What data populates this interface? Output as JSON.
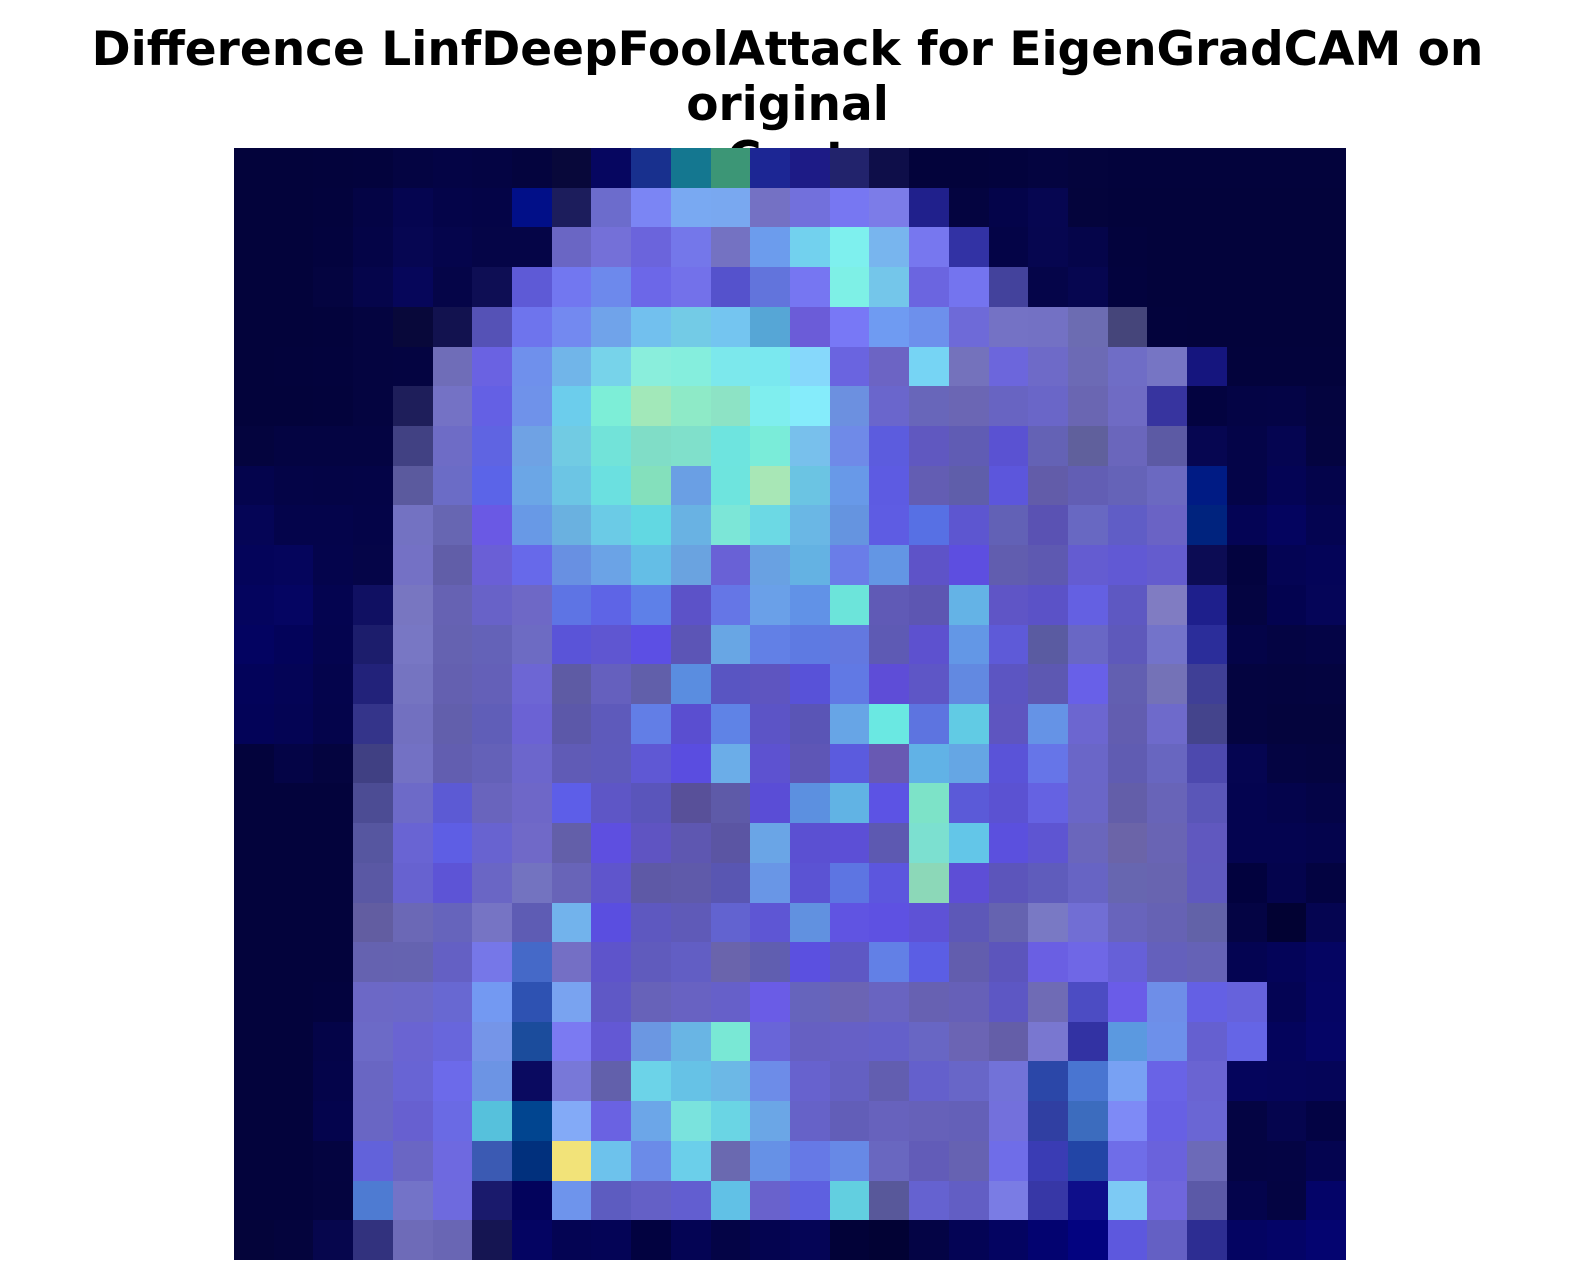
{
  "title": {
    "line1": "Difference LinfDeepFoolAttack for EigenGradCAM on original",
    "line2": "Coat"
  },
  "heatmap": {
    "rows": 28,
    "cols": 28,
    "colors": [
      [
        "#03033b",
        "#03033b",
        "#03033c",
        "#03033d",
        "#040442",
        "#040445",
        "#040443",
        "#04043e",
        "#08083a",
        "#060660",
        "#18308e",
        "#147790",
        "#3c9676",
        "#1c2694",
        "#1d1b86",
        "#22236c",
        "#0e0e49",
        "#03033b",
        "#03033b",
        "#03033d",
        "#040440",
        "#04043d",
        "#03033c",
        "#03033c",
        "#03033c",
        "#03033c",
        "#03033c",
        "#03033c"
      ],
      [
        "#03033b",
        "#03033b",
        "#03033d",
        "#040445",
        "#050550",
        "#040449",
        "#040447",
        "#010f88",
        "#1c1d5c",
        "#6c6ccc",
        "#7b85f4",
        "#79a9f2",
        "#79a8f0",
        "#7471c4",
        "#7270dc",
        "#7777f2",
        "#7c7ce8",
        "#20208c",
        "#040440",
        "#04044a",
        "#060651",
        "#04043c",
        "#03033b",
        "#03033b",
        "#03033b",
        "#03033b",
        "#03033b",
        "#03033b"
      ],
      [
        "#03033b",
        "#03033b",
        "#03033e",
        "#040447",
        "#060652",
        "#05054c",
        "#050547",
        "#050547",
        "#6a66c4",
        "#7470d8",
        "#6b64dc",
        "#7477ea",
        "#7472c2",
        "#6c9ced",
        "#72d1ee",
        "#7ef0ee",
        "#78b5ee",
        "#7777ef",
        "#3232a4",
        "#040447",
        "#060650",
        "#05054a",
        "#03033d",
        "#03033b",
        "#03033b",
        "#03033b",
        "#03033b",
        "#03033b"
      ],
      [
        "#03033b",
        "#03033b",
        "#040440",
        "#05054b",
        "#06065a",
        "#050548",
        "#0e0e54",
        "#5e5ad6",
        "#7277f0",
        "#6d89ec",
        "#6c67e8",
        "#7371ea",
        "#5552cc",
        "#6274dc",
        "#7676f2",
        "#7ef0e6",
        "#74c6ea",
        "#6b65e0",
        "#7474ef",
        "#43429c",
        "#050549",
        "#060650",
        "#03033e",
        "#03033b",
        "#03033b",
        "#03033b",
        "#03033b",
        "#03033b"
      ],
      [
        "#03033b",
        "#03033b",
        "#03033c",
        "#040440",
        "#08083a",
        "#12124f",
        "#5552b6",
        "#6e74ed",
        "#7389f0",
        "#70a3ea",
        "#72c0ee",
        "#73cbe6",
        "#74c5f0",
        "#56a6d6",
        "#6b5cd8",
        "#7878f6",
        "#6f9bf2",
        "#6d90ec",
        "#6e6ad8",
        "#7472c5",
        "#7371c4",
        "#6c6cb2",
        "#45457a",
        "#03033c",
        "#03033b",
        "#03033b",
        "#03033b",
        "#03033b"
      ],
      [
        "#03033b",
        "#03033c",
        "#03033d",
        "#040440",
        "#040441",
        "#6f6db8",
        "#6a62e2",
        "#6f90ec",
        "#71b5e9",
        "#77d3ea",
        "#8aeedc",
        "#85eedd",
        "#7ce8ec",
        "#7ae8ef",
        "#86d8fb",
        "#6a64e0",
        "#6c64c4",
        "#76d4f4",
        "#7472bc",
        "#6c66dc",
        "#6e6ac8",
        "#6c6ab5",
        "#6f6dc6",
        "#7675c4",
        "#15157e",
        "#03033c",
        "#03033c",
        "#03033c"
      ],
      [
        "#03033b",
        "#03033b",
        "#03033c",
        "#040440",
        "#1e1e5a",
        "#7472c5",
        "#6460e4",
        "#6f92ea",
        "#6ccdec",
        "#7deed7",
        "#a2e8b9",
        "#8eeac7",
        "#8de3c5",
        "#7feeee",
        "#85ecfb",
        "#6c90e0",
        "#6a66cc",
        "#6866ba",
        "#6b66b4",
        "#6864c2",
        "#6a66c8",
        "#6a66b2",
        "#6f6bc4",
        "#37349f",
        "#030340",
        "#040445",
        "#040446",
        "#04043f"
      ],
      [
        "#04043e",
        "#040442",
        "#040442",
        "#040442",
        "#414183",
        "#6e6cc6",
        "#5f64e2",
        "#6fa2e4",
        "#71cbe3",
        "#72e3d9",
        "#80ddc7",
        "#80e0cb",
        "#6ee4df",
        "#7aecd9",
        "#78c0ec",
        "#6f8ae8",
        "#5c5cde",
        "#6058c0",
        "#605cb4",
        "#5a52d2",
        "#6462b5",
        "#60609c",
        "#6a66bc",
        "#5c5aa4",
        "#060651",
        "#040448",
        "#050551",
        "#040440"
      ],
      [
        "#04044d",
        "#040447",
        "#040446",
        "#040447",
        "#5b5a9e",
        "#6b6cc6",
        "#5b64e8",
        "#6ba6e6",
        "#6cc5e4",
        "#6be0e0",
        "#84e0bc",
        "#6a9fe4",
        "#6ee4de",
        "#a8e7b6",
        "#6bc4e3",
        "#6899e8",
        "#5d5be2",
        "#635db3",
        "#5f5eaa",
        "#5c56dc",
        "#625ca9",
        "#625eb4",
        "#6563b8",
        "#6b69c1",
        "#001b84",
        "#040448",
        "#040455",
        "#04044b"
      ],
      [
        "#050556",
        "#04044b",
        "#04044b",
        "#040448",
        "#7372c2",
        "#6766b2",
        "#6a59e4",
        "#6899e6",
        "#6ab1e0",
        "#6bcbe6",
        "#62d8e2",
        "#69b2e3",
        "#7ce6d7",
        "#6cd9e4",
        "#6ab7e5",
        "#6594e0",
        "#5e5ce3",
        "#5770e4",
        "#5d56d0",
        "#6261b6",
        "#5a52b3",
        "#6868c2",
        "#605dc6",
        "#6a63c5",
        "#00237e",
        "#040455",
        "#04045f",
        "#040451"
      ],
      [
        "#04045a",
        "#05055c",
        "#04044c",
        "#050548",
        "#7471c5",
        "#615ea8",
        "#6a5fd6",
        "#6769ea",
        "#6890e2",
        "#6ba3e6",
        "#64bee6",
        "#6aa3e0",
        "#6961d6",
        "#69a1e2",
        "#64b2e3",
        "#6a7de8",
        "#6396e4",
        "#5e53c8",
        "#5d4ee0",
        "#615daf",
        "#5e59b1",
        "#645cd1",
        "#6159d4",
        "#645cce",
        "#0c0c54",
        "#03033f",
        "#040454",
        "#040458"
      ],
      [
        "#04045e",
        "#050562",
        "#040450",
        "#101062",
        "#7876c1",
        "#6662b3",
        "#6862c8",
        "#6e68c6",
        "#5e74e4",
        "#5e64e6",
        "#5e80e8",
        "#5c52c8",
        "#6576e6",
        "#6aa0e8",
        "#6192e7",
        "#6ce4da",
        "#605ab6",
        "#5d56b2",
        "#64b3e6",
        "#5f55c6",
        "#5b52c7",
        "#6460e2",
        "#5e58c2",
        "#807cc2",
        "#1e1f8c",
        "#040441",
        "#030350",
        "#050558"
      ],
      [
        "#030361",
        "#03035a",
        "#04044f",
        "#1c1d6c",
        "#7877c4",
        "#6562b1",
        "#6462b8",
        "#6d6bc3",
        "#5a54d8",
        "#5f56d1",
        "#5c4fe4",
        "#5c55b6",
        "#68a6e4",
        "#6280e6",
        "#5e7ae2",
        "#6378e0",
        "#5e5ab4",
        "#5d51cf",
        "#6397e6",
        "#5e5ad8",
        "#5a5ba1",
        "#6967c5",
        "#5e59bb",
        "#7373ca",
        "#2b2d9a",
        "#040448",
        "#040443",
        "#040446"
      ],
      [
        "#03035a",
        "#040456",
        "#04044c",
        "#22227a",
        "#7574c1",
        "#6460b0",
        "#6460b8",
        "#6d66d4",
        "#5e5ba4",
        "#6560be",
        "#615faa",
        "#5a8de0",
        "#5955c2",
        "#5e55c0",
        "#5852d8",
        "#6179e4",
        "#5e4dd7",
        "#5e56c6",
        "#6289e1",
        "#5c55c2",
        "#5d58b2",
        "#6860e8",
        "#625fb1",
        "#7472b7",
        "#3f3f96",
        "#040440",
        "#04043f",
        "#040440"
      ],
      [
        "#030358",
        "#040454",
        "#04044b",
        "#34348a",
        "#7270c0",
        "#625fac",
        "#605eb8",
        "#6b62d4",
        "#5c58a9",
        "#5e5abb",
        "#627ee6",
        "#5a4ed0",
        "#5f83e6",
        "#5c54c6",
        "#5a55b6",
        "#67a5e6",
        "#6ae8e2",
        "#5d74e0",
        "#61cbe4",
        "#5e55c0",
        "#6593e6",
        "#6c66d0",
        "#625db0",
        "#6e6acb",
        "#44448c",
        "#040440",
        "#04043d",
        "#04043d"
      ],
      [
        "#03033c",
        "#040446",
        "#04043f",
        "#404083",
        "#7371c4",
        "#625eb0",
        "#6461b8",
        "#6c66cc",
        "#605bb6",
        "#5e5abc",
        "#5f58d4",
        "#5a4de0",
        "#6bade8",
        "#5d52d0",
        "#5e56b6",
        "#5b5bde",
        "#6859b3",
        "#61b2e6",
        "#65a6e4",
        "#5a53d8",
        "#6675e8",
        "#6a66c8",
        "#605cb2",
        "#6866c0",
        "#4d49ae",
        "#050551",
        "#040442",
        "#040440"
      ],
      [
        "#03033c",
        "#03033c",
        "#03033c",
        "#4c4c94",
        "#6d6ac8",
        "#5c5ad4",
        "#6964bd",
        "#6e67c8",
        "#5d5ee8",
        "#5e56c6",
        "#5a55bb",
        "#585099",
        "#5e5aa8",
        "#5a4dd6",
        "#5c90e0",
        "#61b3e4",
        "#5c53e4",
        "#7de3c8",
        "#5b5ad8",
        "#5b52d2",
        "#6562e2",
        "#6a66c7",
        "#635ea9",
        "#6864b8",
        "#5a56b8",
        "#040450",
        "#04044c",
        "#040447"
      ],
      [
        "#03033c",
        "#03033c",
        "#03033c",
        "#5656a0",
        "#6964d3",
        "#5e5ee4",
        "#6863d0",
        "#7069c8",
        "#635fa9",
        "#5e4fe0",
        "#5f54c2",
        "#5e57b1",
        "#5b55a3",
        "#6aa5e6",
        "#5b50d2",
        "#5c4fd6",
        "#5d59b1",
        "#7ce0d0",
        "#63c6e8",
        "#5b50de",
        "#5e55d2",
        "#6a66bc",
        "#6b64a8",
        "#6964b4",
        "#6058bf",
        "#040450",
        "#040450",
        "#04044d"
      ],
      [
        "#03033c",
        "#03033c",
        "#03033c",
        "#5a58a4",
        "#6762d0",
        "#5d54d6",
        "#6a66c5",
        "#7373c0",
        "#6864b8",
        "#5f55cc",
        "#5e59a6",
        "#5f5aaa",
        "#5956b2",
        "#6996e6",
        "#5b53d3",
        "#5d75e2",
        "#5c56de",
        "#8cd8b8",
        "#5d4ed6",
        "#5c55bb",
        "#5f5cbc",
        "#6764c4",
        "#6766b0",
        "#6864b0",
        "#5f59bf",
        "#02023e",
        "#04044d",
        "#030341"
      ],
      [
        "#03033c",
        "#03033c",
        "#03033c",
        "#625da1",
        "#6b68b6",
        "#6664bc",
        "#7674c4",
        "#5e5cb4",
        "#72b3ec",
        "#5a4ee0",
        "#5e58c0",
        "#5f5ab8",
        "#6263d0",
        "#5e56d4",
        "#6191e0",
        "#6054e2",
        "#5e51e2",
        "#5e52d6",
        "#5d58b8",
        "#6563b0",
        "#7979c4",
        "#716ed4",
        "#6864bc",
        "#6662b4",
        "#6262a8",
        "#040444",
        "#020233",
        "#050551"
      ],
      [
        "#03033c",
        "#03033c",
        "#03033c",
        "#6562b0",
        "#6563b0",
        "#6460c4",
        "#7677e8",
        "#4569c8",
        "#746fc5",
        "#5e54cb",
        "#605bbd",
        "#625ec4",
        "#6a64ac",
        "#605eb0",
        "#5b50e0",
        "#5e58c4",
        "#6280e6",
        "#5b5ee4",
        "#625dae",
        "#5c55bc",
        "#6a5fe3",
        "#6f67e6",
        "#6660d8",
        "#6460bc",
        "#6562b6",
        "#040452",
        "#040459",
        "#050562"
      ],
      [
        "#03033c",
        "#03033c",
        "#03033e",
        "#6c68c6",
        "#6b68c8",
        "#6868d2",
        "#7399f2",
        "#2e52b2",
        "#79a3f0",
        "#5f58c6",
        "#6762b9",
        "#6862c2",
        "#6660c9",
        "#6a5ce6",
        "#6664bc",
        "#6b64b4",
        "#6964c1",
        "#6761b2",
        "#6660b8",
        "#5d57c4",
        "#6f6bb5",
        "#4c4cc3",
        "#6a5ce8",
        "#6e8ee8",
        "#6460e4",
        "#6662dc",
        "#040454",
        "#050564"
      ],
      [
        "#03033c",
        "#03033c",
        "#040448",
        "#6c6ac7",
        "#6a64d2",
        "#6866dc",
        "#7595e8",
        "#1b4c9c",
        "#7b7af2",
        "#6358d4",
        "#6b97e2",
        "#69b5e4",
        "#79e8d5",
        "#6965d8",
        "#6660c2",
        "#6660c6",
        "#6460ca",
        "#6866c4",
        "#6b64b4",
        "#645ea8",
        "#7977d0",
        "#3232a3",
        "#5b99e0",
        "#6d90ea",
        "#6560d0",
        "#6565e6",
        "#04045c",
        "#050566"
      ],
      [
        "#03033c",
        "#03033c",
        "#04044a",
        "#6966c3",
        "#6864d4",
        "#6c6aea",
        "#6c94e4",
        "#0a0a60",
        "#7878d8",
        "#6260ab",
        "#6cd3e8",
        "#66c2e6",
        "#6cb8e6",
        "#6d8ce8",
        "#6762ce",
        "#6460c2",
        "#625eb0",
        "#6460cc",
        "#6866c8",
        "#7272d8",
        "#2b47a8",
        "#4975d1",
        "#78a1f3",
        "#6963e6",
        "#6a64d2",
        "#05055c",
        "#05055a",
        "#050558"
      ],
      [
        "#03033c",
        "#03033c",
        "#04044d",
        "#6966c4",
        "#6760d0",
        "#6a6ae4",
        "#56c1dc",
        "#014590",
        "#83aaf7",
        "#6a62e2",
        "#6ca6e8",
        "#7ae3dd",
        "#6ad5e4",
        "#6ba6e6",
        "#6662c8",
        "#625eb8",
        "#6762bd",
        "#6661b9",
        "#6460b8",
        "#7370dc",
        "#303fa2",
        "#3c6cbe",
        "#7e8af6",
        "#6760e4",
        "#6a66d4",
        "#040443",
        "#05054e",
        "#030344"
      ],
      [
        "#03033c",
        "#03033c",
        "#040440",
        "#6262da",
        "#6a66c4",
        "#6e69e0",
        "#3b5ab3",
        "#01307d",
        "#f2e379",
        "#6dc2ec",
        "#6b8be8",
        "#6bcfea",
        "#6a69b0",
        "#6691e6",
        "#6679e6",
        "#6789e6",
        "#6967c0",
        "#625cb8",
        "#6662b2",
        "#6f6de8",
        "#3a3cb4",
        "#2245a6",
        "#6f6de8",
        "#6a62dc",
        "#6c6ab8",
        "#040443",
        "#040444",
        "#040450"
      ],
      [
        "#03033c",
        "#03033c",
        "#04043f",
        "#4e7bd2",
        "#7373c8",
        "#6e6ade",
        "#1a1a6c",
        "#03035c",
        "#6e94ec",
        "#5d5cc0",
        "#6460c6",
        "#625ed0",
        "#61c1e6",
        "#6962cc",
        "#5e60e0",
        "#62cfe0",
        "#58589a",
        "#6562d0",
        "#625ec4",
        "#7a7ce4",
        "#3737a6",
        "#0e0e8a",
        "#7dcaf4",
        "#6f66dc",
        "#5b59a7",
        "#04044c",
        "#040442",
        "#040468"
      ],
      [
        "#04043a",
        "#04043d",
        "#06064d",
        "#32327e",
        "#6e6bb8",
        "#6966b4",
        "#151552",
        "#040462",
        "#040453",
        "#040456",
        "#020240",
        "#040454",
        "#040446",
        "#040450",
        "#050556",
        "#020238",
        "#020234",
        "#040445",
        "#040455",
        "#040461",
        "#030370",
        "#030380",
        "#5d58de",
        "#6460c4",
        "#2d2d92",
        "#040462",
        "#040467",
        "#040470"
      ]
    ]
  }
}
